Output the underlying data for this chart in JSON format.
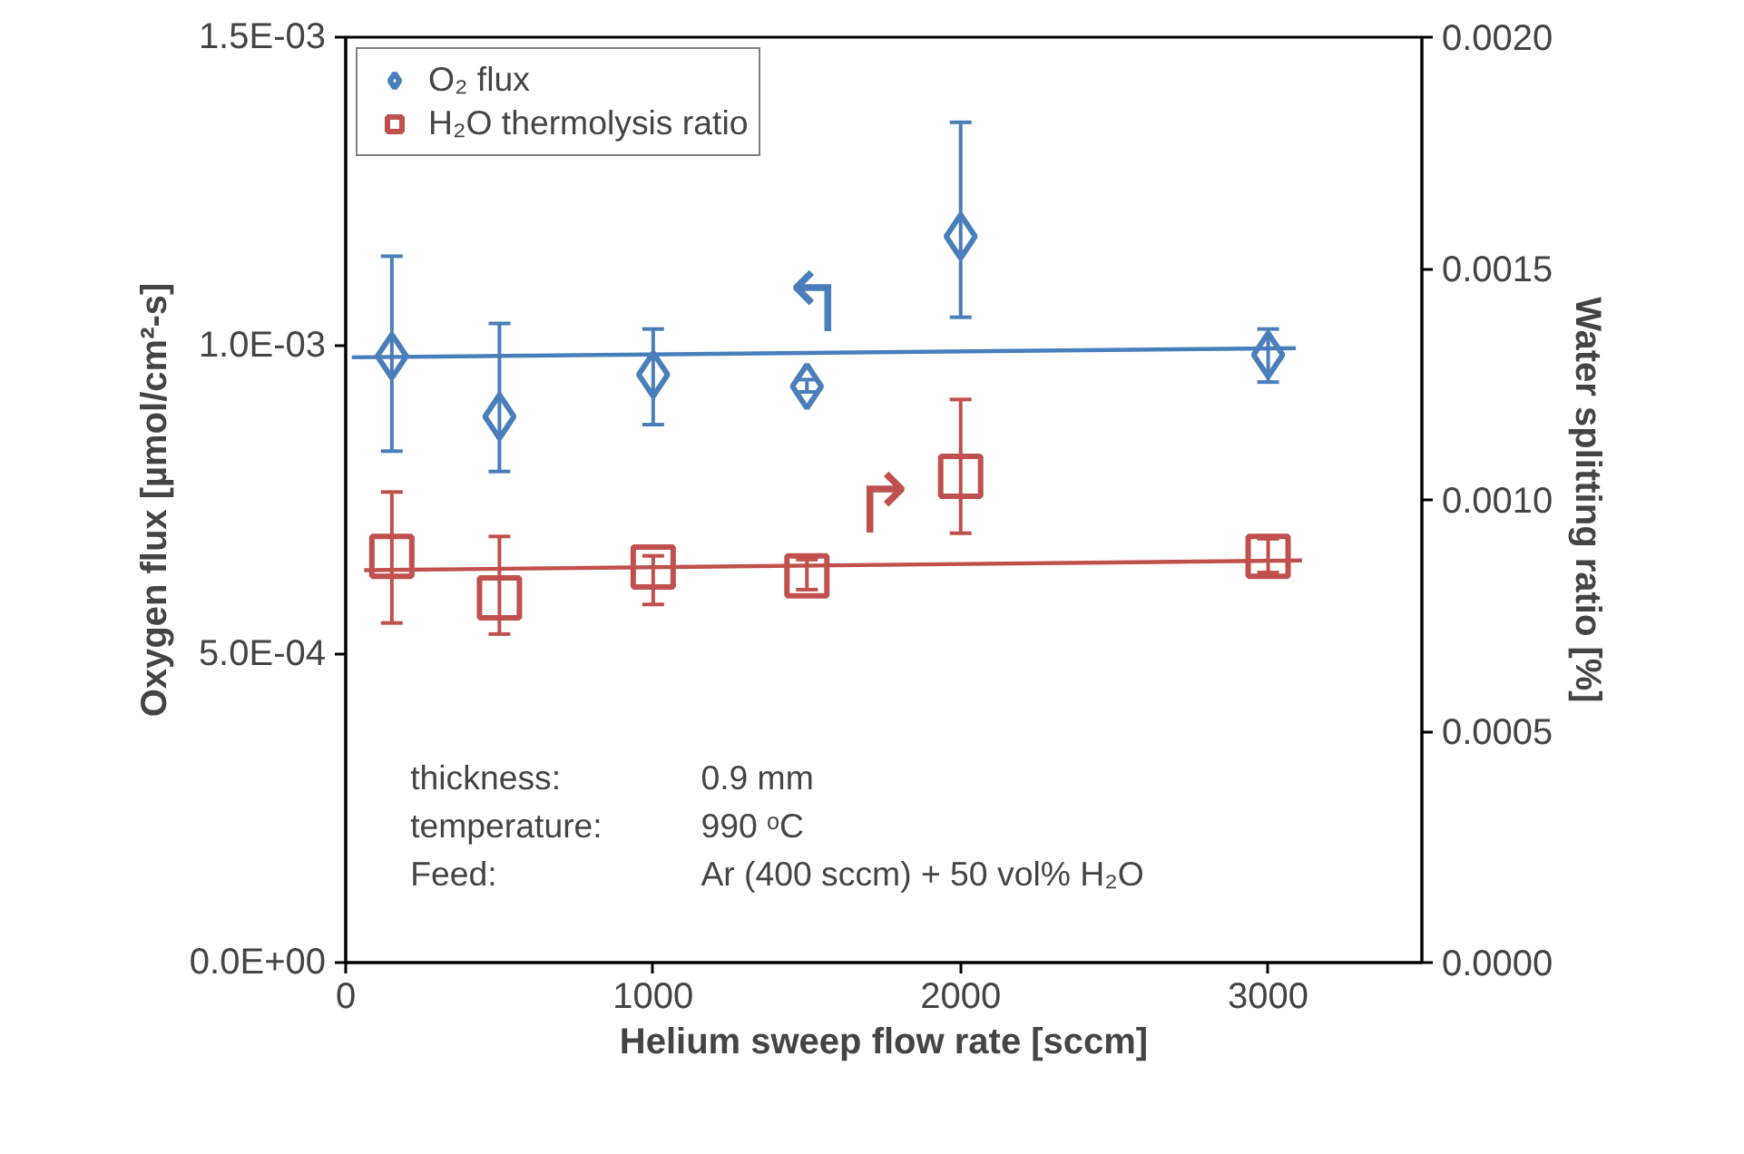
{
  "chart_data": {
    "type": "scatter",
    "xlabel": "Helium sweep flow rate [sccm]",
    "ylabel": "Oxygen flux [µmol/cm²-s]",
    "y2label": "Water splitting ratio [%]",
    "xlim": [
      0,
      3500
    ],
    "xticks": [
      0,
      1000,
      2000,
      3000
    ],
    "ylim": [
      0,
      0.0015
    ],
    "yticks": [
      {
        "value": 0,
        "label": "0.0E+00"
      },
      {
        "value": 0.0005,
        "label": "5.0E-04"
      },
      {
        "value": 0.001,
        "label": "1.0E-03"
      },
      {
        "value": 0.0015,
        "label": "1.5E-03"
      }
    ],
    "y2lim": [
      0,
      0.002
    ],
    "y2ticks": [
      {
        "value": 0,
        "label": "0.0000"
      },
      {
        "value": 0.0005,
        "label": "0.0005"
      },
      {
        "value": 0.001,
        "label": "0.0010"
      },
      {
        "value": 0.0015,
        "label": "0.0015"
      },
      {
        "value": 0.002,
        "label": "0.0020"
      }
    ],
    "x": [
      150,
      500,
      1000,
      1500,
      2000,
      3000
    ],
    "series": [
      {
        "name": "O₂ flux",
        "color": "#4a7ebb",
        "marker": "diamond",
        "values": [
          0.000983,
          0.000885,
          0.000953,
          0.000934,
          0.001177,
          0.000985
        ],
        "errors": [
          [
            0.000829,
            0.001145
          ],
          [
            0.000796,
            0.001036
          ],
          [
            0.000872,
            0.001027
          ],
          [
            0.000925,
            0.000945
          ],
          [
            0.001046,
            0.001362
          ],
          [
            0.000941,
            0.001027
          ]
        ]
      },
      {
        "name": "H₂O thermolysis ratio",
        "color": "#c0504d",
        "marker": "square",
        "axis": "y2",
        "values": [
          0.000878,
          0.000788,
          0.000855,
          0.000836,
          0.001051,
          0.000878
        ],
        "errors": [
          [
            0.000734,
            0.001017
          ],
          [
            0.00071,
            0.000921
          ],
          [
            0.000774,
            0.000879
          ],
          [
            0.000806,
            0.000871
          ],
          [
            0.000928,
            0.001217
          ],
          [
            0.000843,
            0.000916
          ]
        ]
      },
      {
        "type": "line",
        "color": "#4a7ebb",
        "x": [
          20,
          3090
        ],
        "values": [
          0.000981,
          0.000996
        ]
      },
      {
        "type": "line",
        "color": "#c0504d",
        "axis": "y2",
        "x": [
          60,
          3110
        ],
        "values": [
          0.000848,
          0.000869
        ]
      }
    ],
    "annotations": [
      "thickness:\t0.9 mm",
      "temperature:\t990 ᵒC",
      "Feed:\tAr (400 sccm) + 50 vol%  H₂O",
      "↰",
      "↱"
    ],
    "grid": false,
    "legend": "top left"
  }
}
